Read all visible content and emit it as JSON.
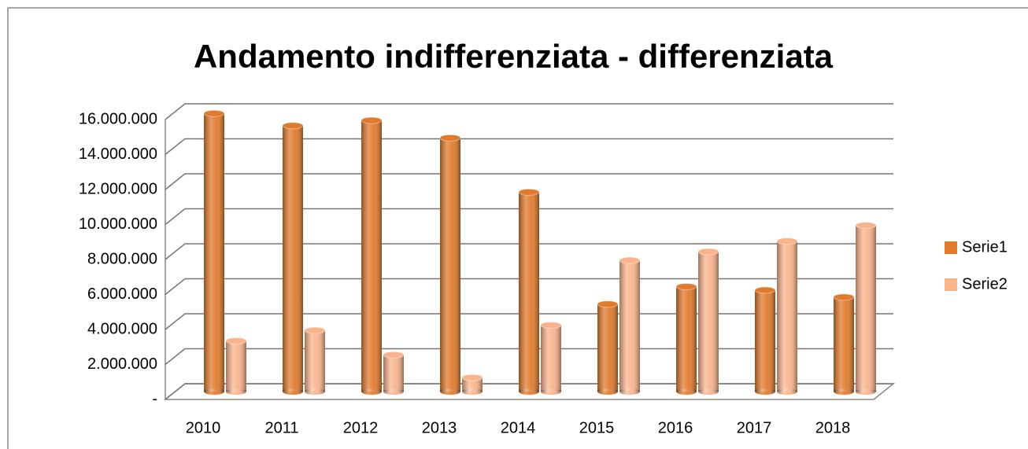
{
  "chart_data": {
    "type": "bar3d",
    "title": "Andamento indifferenziata - differenziata",
    "categories": [
      "2010",
      "2011",
      "2012",
      "2013",
      "2014",
      "2015",
      "2016",
      "2017",
      "2018"
    ],
    "series": [
      {
        "name": "Serie1",
        "color": "#e07b2e",
        "values": [
          15900000,
          15200000,
          15500000,
          14500000,
          11400000,
          5000000,
          6000000,
          5800000,
          5400000
        ]
      },
      {
        "name": "Serie2",
        "color": "#f9b48c",
        "values": [
          2900000,
          3500000,
          2100000,
          800000,
          3800000,
          7500000,
          8000000,
          8600000,
          9500000
        ]
      }
    ],
    "ylim": [
      0,
      16000000
    ],
    "yticks": [
      {
        "value": 0,
        "label": "-"
      },
      {
        "value": 2000000,
        "label": "2.000.000"
      },
      {
        "value": 4000000,
        "label": "4.000.000"
      },
      {
        "value": 6000000,
        "label": "6.000.000"
      },
      {
        "value": 8000000,
        "label": "8.000.000"
      },
      {
        "value": 10000000,
        "label": "10.000.000"
      },
      {
        "value": 12000000,
        "label": "12.000.000"
      },
      {
        "value": 14000000,
        "label": "14.000.000"
      },
      {
        "value": 16000000,
        "label": "16.000.000"
      }
    ],
    "grid": true,
    "legend": "right"
  }
}
